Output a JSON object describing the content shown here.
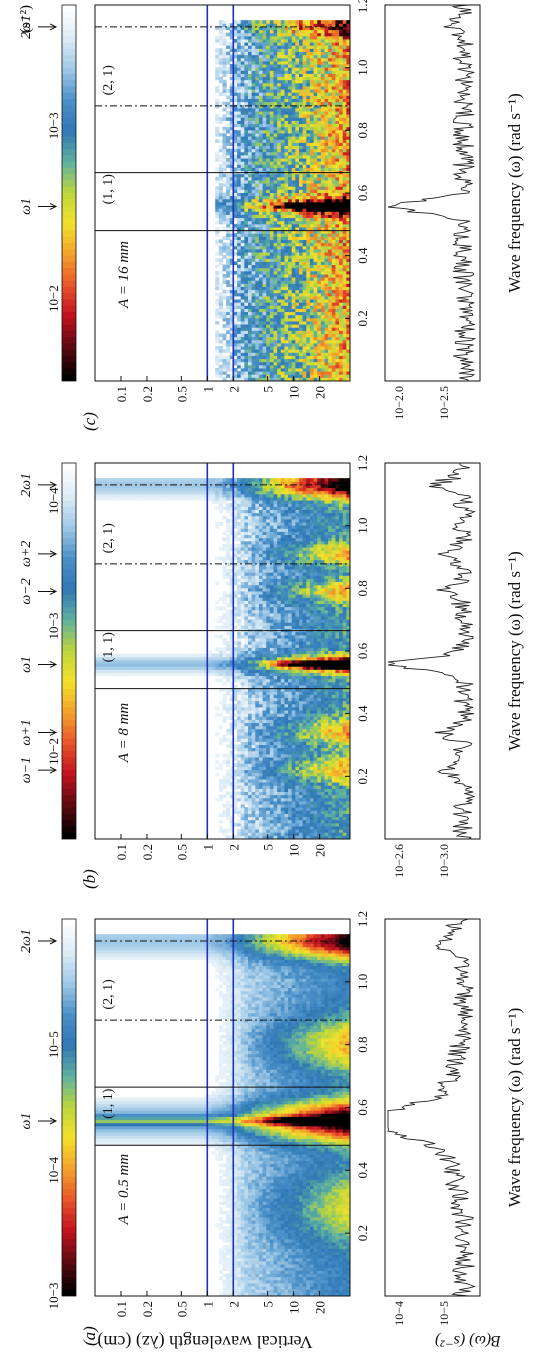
{
  "figure": {
    "shared_ylabel": "Vertical wavelength (λz) (cm)",
    "shared_ylabel_b": "B(ω) (s⁻²)",
    "colorbar_units": "(s⁻²)",
    "xlabel": "Wave frequency (ω) (rad s⁻¹)",
    "colors": {
      "colormap": [
        "#ffffff",
        "#dcebf5",
        "#9ec8e6",
        "#4a90c8",
        "#2f78b5",
        "#5fb2a0",
        "#bcd63c",
        "#f3e12c",
        "#f3a12b",
        "#e7542a",
        "#c1121f",
        "#5c0a10",
        "#000000"
      ],
      "guide_line": "#2030c0",
      "frame": "#111111"
    }
  },
  "chart_data": [
    {
      "type": "heatmap",
      "panel_label": "(a)",
      "amplitude_label": "A = 0.5 mm",
      "xlim": [
        0,
        1.2
      ],
      "x_ticks": [
        "0.2",
        "0.4",
        "0.6",
        "0.8",
        "1.0",
        "1.2"
      ],
      "y_ticks": [
        "0.1",
        "0.2",
        "0.5",
        "1",
        "2",
        "5",
        "10",
        "20"
      ],
      "y_scale": "log",
      "color_scale": "log",
      "colorbar_ticks": [
        "10−3",
        "10−4",
        "10−5"
      ],
      "colorbar_range": [
        1e-06,
        0.001
      ],
      "forcing_frequency": 0.557,
      "forcing_wavelength": 38,
      "blue_lines_wavelength": [
        1,
        2
      ],
      "solid_lines_frequency": [
        0.48,
        0.665
      ],
      "dashdot_lines_frequency": [
        0.878,
        1.13
      ],
      "region_labels": [
        "(1, 1)",
        "(2, 1)"
      ],
      "arrow_labels": [
        {
          "text": "ω1",
          "x": 0.557
        },
        {
          "text": "2ω1",
          "x": 1.13
        }
      ],
      "spectrum_b": {
        "yscale": "log",
        "y_ticks": [
          "10−4",
          "10−5"
        ],
        "peaks": [
          [
            0.557,
            0.00025
          ],
          [
            1.13,
            1e-05
          ]
        ],
        "baseline": 3e-06
      }
    },
    {
      "type": "heatmap",
      "panel_label": "(b)",
      "amplitude_label": "A = 8 mm",
      "xlim": [
        0,
        1.2
      ],
      "x_ticks": [
        "0.2",
        "0.4",
        "0.6",
        "0.8",
        "1.0",
        "1.2"
      ],
      "y_ticks": [
        "0.1",
        "0.2",
        "0.5",
        "1",
        "2",
        "5",
        "10",
        "20"
      ],
      "y_scale": "log",
      "color_scale": "log",
      "colorbar_ticks": [
        "10−2",
        "10−3",
        "10−4"
      ],
      "colorbar_range": [
        5e-05,
        0.05
      ],
      "forcing_frequency": 0.557,
      "forcing_wavelength": 38,
      "blue_lines_wavelength": [
        1,
        2
      ],
      "solid_lines_frequency": [
        0.48,
        0.665
      ],
      "dashdot_lines_frequency": [
        0.878,
        1.13
      ],
      "region_labels": [
        "(1, 1)",
        "(2, 1)"
      ],
      "arrow_labels": [
        {
          "text": "ω−1",
          "x": 0.22
        },
        {
          "text": "ω+1",
          "x": 0.34
        },
        {
          "text": "ω1",
          "x": 0.557
        },
        {
          "text": "ω−2",
          "x": 0.79
        },
        {
          "text": "ω+2",
          "x": 0.91
        },
        {
          "text": "2ω1",
          "x": 1.13
        }
      ],
      "spectrum_b": {
        "yscale": "log",
        "y_ticks": [
          "10−2.6",
          "10−3.0"
        ],
        "peaks": [
          [
            0.557,
            0.002
          ],
          [
            1.13,
            0.0012
          ],
          [
            0.34,
            0.0011
          ],
          [
            0.22,
            0.0011
          ],
          [
            0.79,
            0.0011
          ],
          [
            0.91,
            0.0011
          ]
        ],
        "baseline": 0.0009
      }
    },
    {
      "type": "heatmap",
      "panel_label": "(c)",
      "amplitude_label": "A = 16 mm",
      "xlim": [
        0,
        1.2
      ],
      "x_ticks": [
        "0.2",
        "0.4",
        "0.6",
        "0.8",
        "1.0",
        "1.2"
      ],
      "y_ticks": [
        "0.1",
        "0.2",
        "0.5",
        "1",
        "2",
        "5",
        "10",
        "20"
      ],
      "y_scale": "log",
      "color_scale": "log",
      "colorbar_ticks": [
        "10−2",
        "10−3"
      ],
      "colorbar_range": [
        0.0002,
        0.03
      ],
      "forcing_frequency": 0.557,
      "forcing_wavelength": 38,
      "blue_lines_wavelength": [
        1,
        2
      ],
      "solid_lines_frequency": [
        0.48,
        0.665
      ],
      "dashdot_lines_frequency": [
        0.878,
        1.13
      ],
      "region_labels": [
        "(1, 1)",
        "(2, 1)"
      ],
      "arrow_labels": [
        {
          "text": "ω1",
          "x": 0.557
        },
        {
          "text": "2ω1",
          "x": 1.13
        }
      ],
      "spectrum_b": {
        "yscale": "log",
        "y_ticks": [
          "10−2.0",
          "10−2.5"
        ],
        "peaks": [
          [
            0.557,
            0.009
          ],
          [
            1.13,
            0.0045
          ]
        ],
        "baseline": 0.004
      }
    }
  ]
}
